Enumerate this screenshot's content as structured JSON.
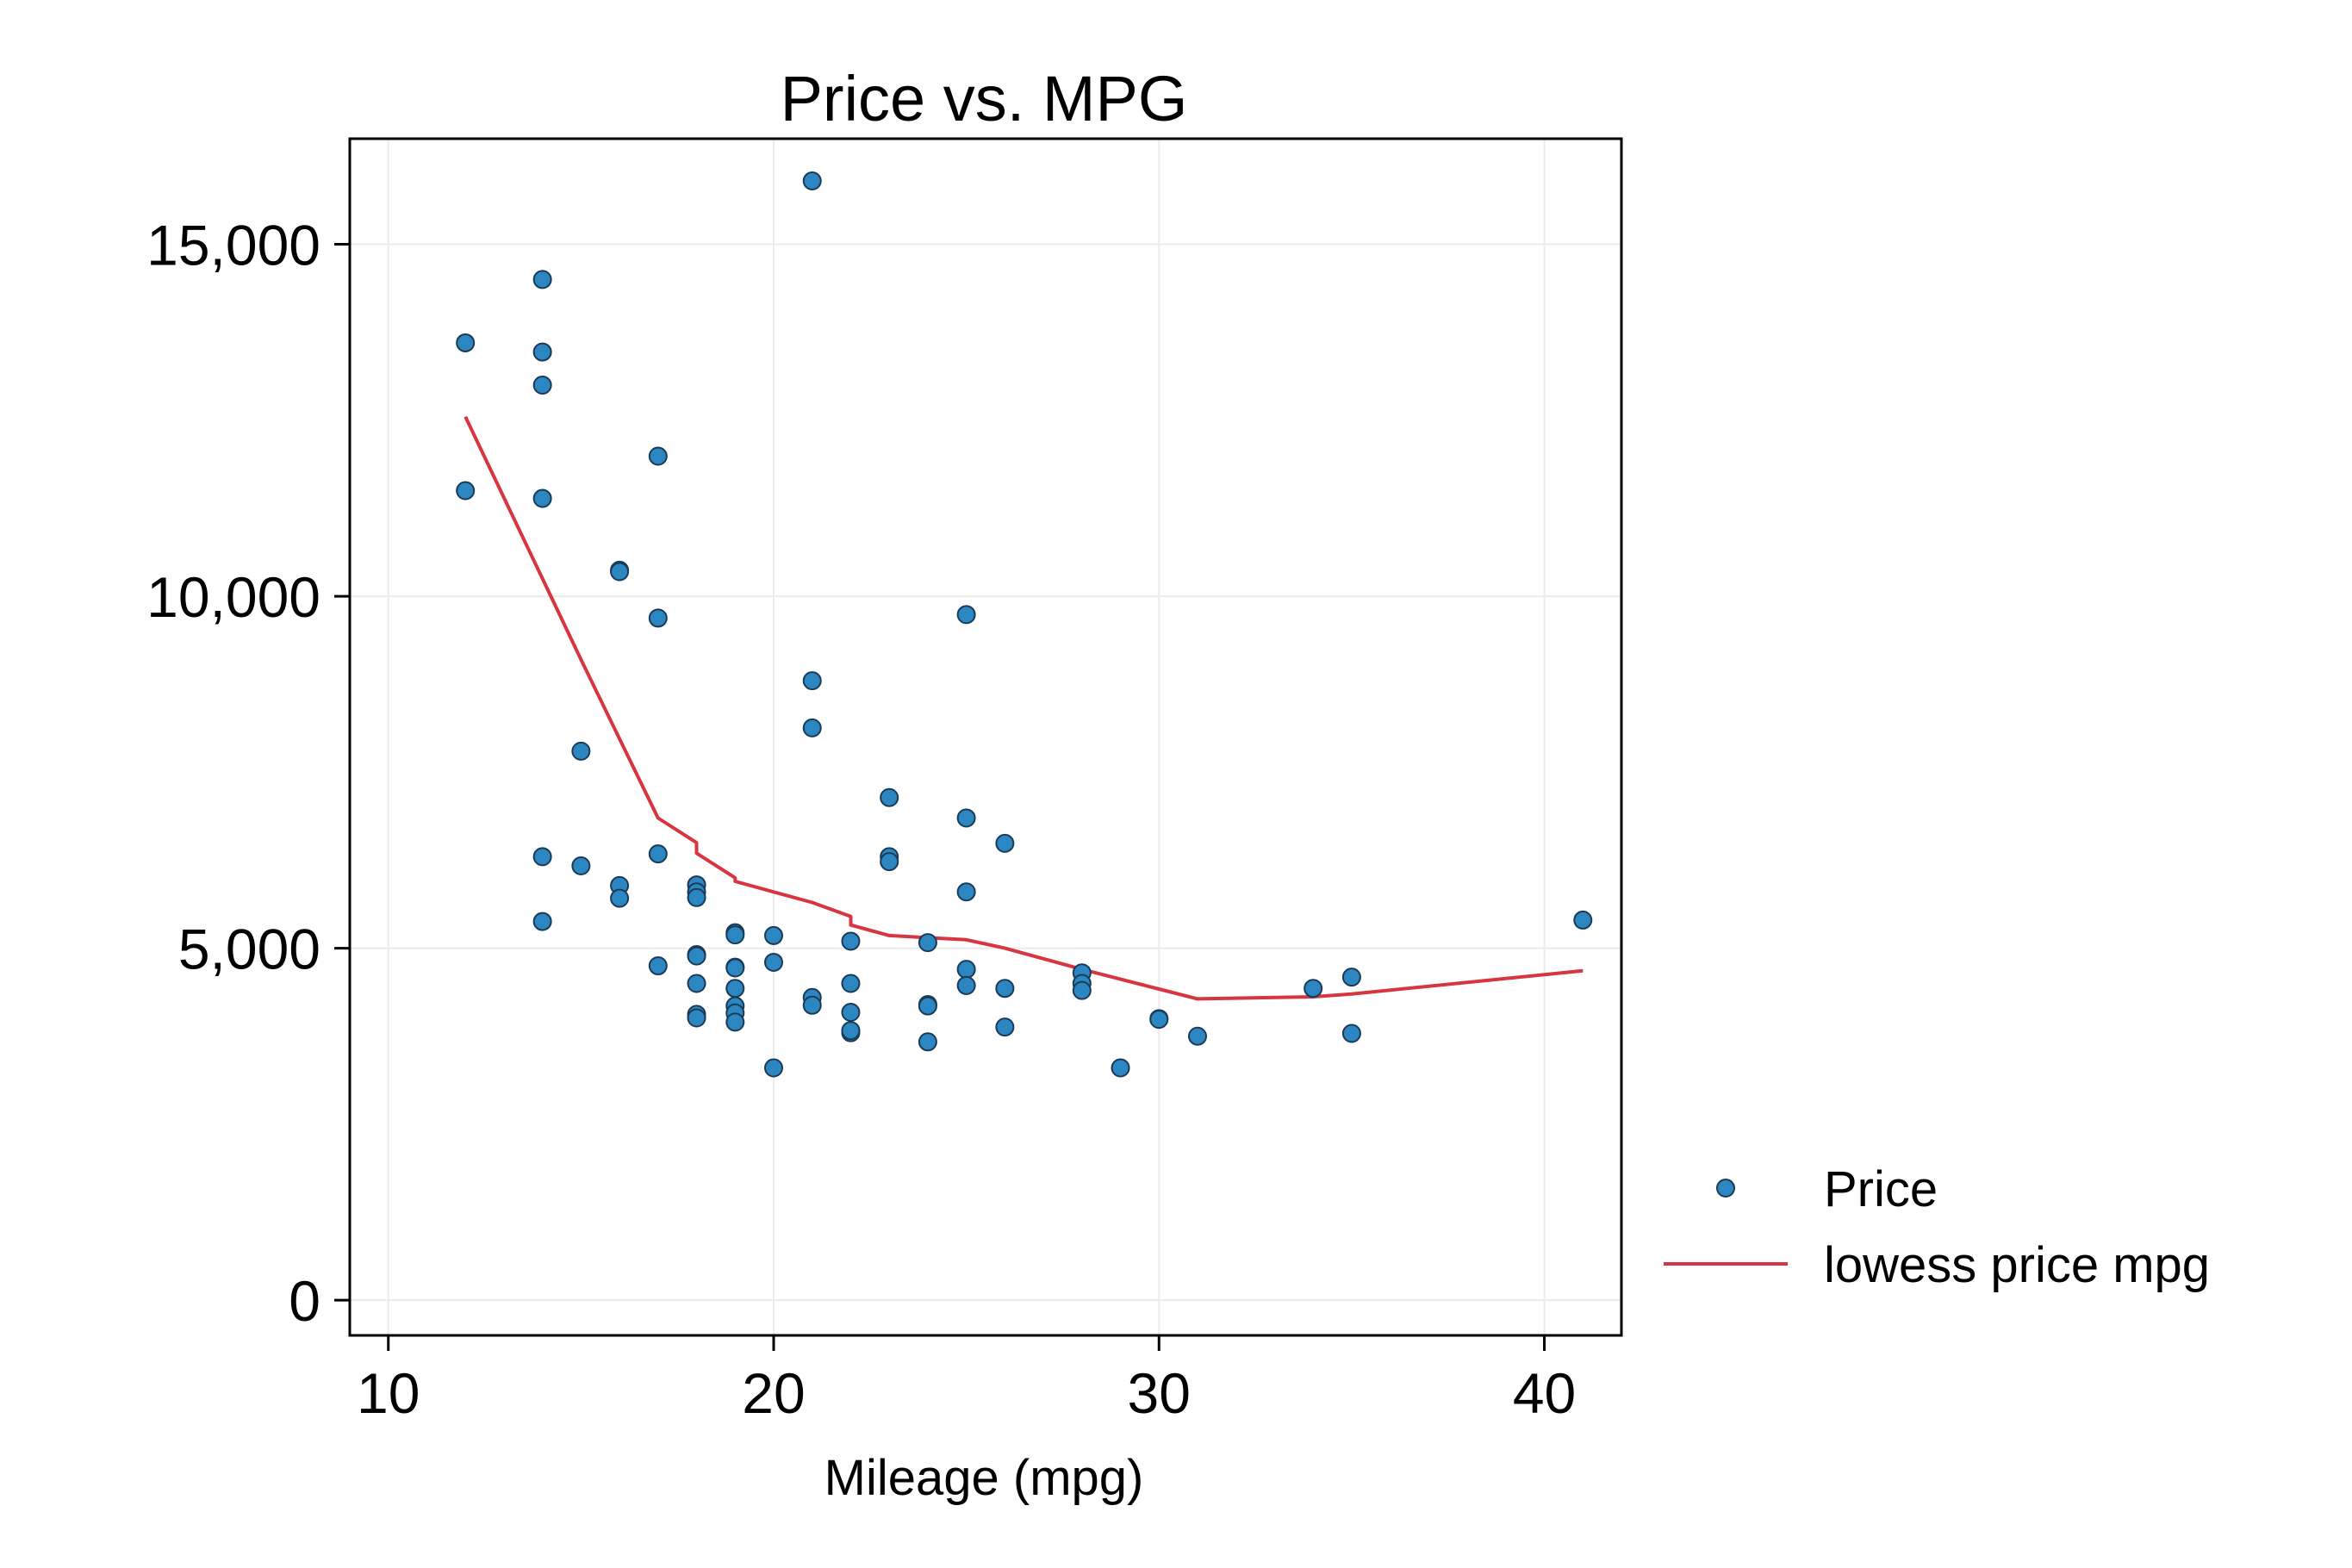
{
  "chart_data": {
    "type": "scatter",
    "title": "Price vs. MPG",
    "xlabel": "Mileage (mpg)",
    "ylabel": "",
    "xlim": [
      9,
      42
    ],
    "ylim": [
      -500,
      16500
    ],
    "xticks": [
      10,
      20,
      30,
      40
    ],
    "xtick_labels": [
      "10",
      "20",
      "30",
      "40"
    ],
    "yticks": [
      0,
      5000,
      10000,
      15000
    ],
    "ytick_labels": [
      "0",
      "5,000",
      "10,000",
      "15,000"
    ],
    "grid": true,
    "legend_position": "right",
    "colors": {
      "scatter": "#2c86c2",
      "lowess": "#d7353f",
      "grid": "#ebebeb",
      "frame": "#000000"
    },
    "series": [
      {
        "name": "Price",
        "kind": "scatter",
        "points": [
          [
            12,
            13600
          ],
          [
            12,
            11500
          ],
          [
            14,
            14500
          ],
          [
            14,
            13470
          ],
          [
            14,
            13000
          ],
          [
            14,
            11390
          ],
          [
            14,
            6300
          ],
          [
            14,
            5380
          ],
          [
            15,
            7800
          ],
          [
            15,
            6170
          ],
          [
            16,
            10370
          ],
          [
            16,
            10350
          ],
          [
            16,
            5890
          ],
          [
            16,
            5710
          ],
          [
            17,
            11990
          ],
          [
            17,
            9690
          ],
          [
            17,
            6340
          ],
          [
            17,
            4750
          ],
          [
            18,
            5900
          ],
          [
            18,
            5800
          ],
          [
            18,
            5720
          ],
          [
            18,
            4910
          ],
          [
            18,
            4890
          ],
          [
            18,
            4500
          ],
          [
            18,
            4060
          ],
          [
            18,
            4010
          ],
          [
            19,
            5220
          ],
          [
            19,
            5190
          ],
          [
            19,
            4730
          ],
          [
            19,
            4720
          ],
          [
            19,
            4430
          ],
          [
            19,
            4180
          ],
          [
            19,
            4080
          ],
          [
            19,
            3950
          ],
          [
            20,
            5180
          ],
          [
            20,
            4800
          ],
          [
            20,
            3300
          ],
          [
            21,
            15900
          ],
          [
            21,
            8800
          ],
          [
            21,
            8130
          ],
          [
            21,
            4300
          ],
          [
            21,
            4190
          ],
          [
            22,
            5100
          ],
          [
            22,
            4500
          ],
          [
            22,
            4090
          ],
          [
            22,
            3800
          ],
          [
            22,
            3830
          ],
          [
            23,
            7140
          ],
          [
            23,
            6300
          ],
          [
            23,
            6230
          ],
          [
            24,
            5080
          ],
          [
            24,
            4200
          ],
          [
            24,
            4180
          ],
          [
            24,
            3670
          ],
          [
            25,
            9740
          ],
          [
            25,
            6850
          ],
          [
            25,
            5800
          ],
          [
            25,
            4700
          ],
          [
            25,
            4470
          ],
          [
            26,
            6490
          ],
          [
            26,
            4430
          ],
          [
            26,
            3880
          ],
          [
            28,
            4650
          ],
          [
            28,
            4500
          ],
          [
            28,
            4400
          ],
          [
            29,
            3300
          ],
          [
            30,
            4000
          ],
          [
            30,
            3990
          ],
          [
            31,
            3750
          ],
          [
            34,
            4430
          ],
          [
            35,
            4590
          ],
          [
            35,
            3790
          ],
          [
            41,
            5400
          ]
        ]
      },
      {
        "name": "lowess price mpg",
        "kind": "line",
        "points": [
          [
            12,
            12550
          ],
          [
            15,
            9100
          ],
          [
            17,
            6850
          ],
          [
            18,
            6500
          ],
          [
            18,
            6350
          ],
          [
            19,
            6000
          ],
          [
            19,
            5950
          ],
          [
            20,
            5800
          ],
          [
            21,
            5650
          ],
          [
            22,
            5450
          ],
          [
            22,
            5330
          ],
          [
            23,
            5180
          ],
          [
            24,
            5150
          ],
          [
            25,
            5120
          ],
          [
            26,
            5000
          ],
          [
            28,
            4700
          ],
          [
            30,
            4420
          ],
          [
            31,
            4280
          ],
          [
            34,
            4310
          ],
          [
            35,
            4350
          ],
          [
            41,
            4680
          ]
        ]
      }
    ]
  }
}
